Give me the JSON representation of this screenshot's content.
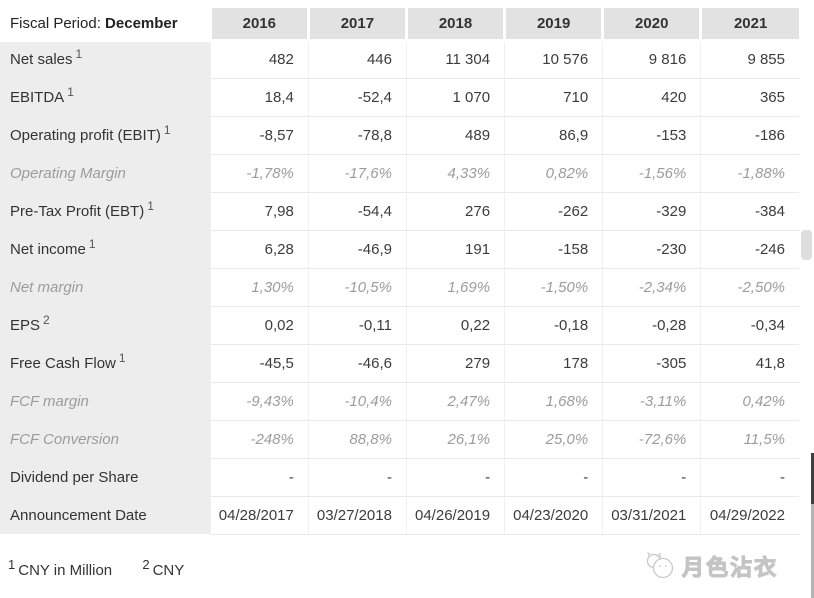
{
  "header": {
    "label_prefix": "Fiscal Period: ",
    "label_bold": "December",
    "years": [
      "2016",
      "2017",
      "2018",
      "2019",
      "2020",
      "2021"
    ]
  },
  "rows": [
    {
      "label": "Net sales",
      "sup": "1",
      "style": "normal",
      "values": [
        "482",
        "446",
        "11 304",
        "10 576",
        "9 816",
        "9 855"
      ]
    },
    {
      "label": "EBITDA",
      "sup": "1",
      "style": "normal",
      "values": [
        "18,4",
        "-52,4",
        "1 070",
        "710",
        "420",
        "365"
      ]
    },
    {
      "label": "Operating profit (EBIT)",
      "sup": "1",
      "style": "normal",
      "values": [
        "-8,57",
        "-78,8",
        "489",
        "86,9",
        "-153",
        "-186"
      ]
    },
    {
      "label": "Operating Margin",
      "sup": "",
      "style": "italic",
      "values": [
        "-1,78%",
        "-17,6%",
        "4,33%",
        "0,82%",
        "-1,56%",
        "-1,88%"
      ]
    },
    {
      "label": "Pre-Tax Profit (EBT)",
      "sup": "1",
      "style": "normal",
      "values": [
        "7,98",
        "-54,4",
        "276",
        "-262",
        "-329",
        "-384"
      ]
    },
    {
      "label": "Net income",
      "sup": "1",
      "style": "normal",
      "values": [
        "6,28",
        "-46,9",
        "191",
        "-158",
        "-230",
        "-246"
      ]
    },
    {
      "label": "Net margin",
      "sup": "",
      "style": "italic",
      "values": [
        "1,30%",
        "-10,5%",
        "1,69%",
        "-1,50%",
        "-2,34%",
        "-2,50%"
      ]
    },
    {
      "label": "EPS",
      "sup": "2",
      "style": "normal",
      "values": [
        "0,02",
        "-0,11",
        "0,22",
        "-0,18",
        "-0,28",
        "-0,34"
      ]
    },
    {
      "label": "Free Cash Flow",
      "sup": "1",
      "style": "normal",
      "values": [
        "-45,5",
        "-46,6",
        "279",
        "178",
        "-305",
        "41,8"
      ]
    },
    {
      "label": "FCF margin",
      "sup": "",
      "style": "italic",
      "values": [
        "-9,43%",
        "-10,4%",
        "2,47%",
        "1,68%",
        "-3,11%",
        "0,42%"
      ]
    },
    {
      "label": "FCF Conversion",
      "sup": "",
      "style": "italic",
      "values": [
        "-248%",
        "88,8%",
        "26,1%",
        "25,0%",
        "-72,6%",
        "11,5%"
      ]
    },
    {
      "label": "Dividend per Share",
      "sup": "",
      "style": "normal",
      "values": [
        "-",
        "-",
        "-",
        "-",
        "-",
        "-"
      ]
    },
    {
      "label": "Announcement Date",
      "sup": "",
      "style": "normal",
      "values": [
        "04/28/2017",
        "03/27/2018",
        "04/26/2019",
        "04/23/2020",
        "03/31/2021",
        "04/29/2022"
      ]
    }
  ],
  "footnotes": [
    {
      "sup": "1",
      "text": "CNY in Million"
    },
    {
      "sup": "2",
      "text": "CNY"
    }
  ],
  "watermark": {
    "text": "月色沾衣"
  },
  "colors": {
    "header_bg": "#e2e2e2",
    "label_bg": "#ededed",
    "row_line": "#e9e9e9",
    "muted": "#9c9c9c",
    "text": "#3c3c3c"
  }
}
